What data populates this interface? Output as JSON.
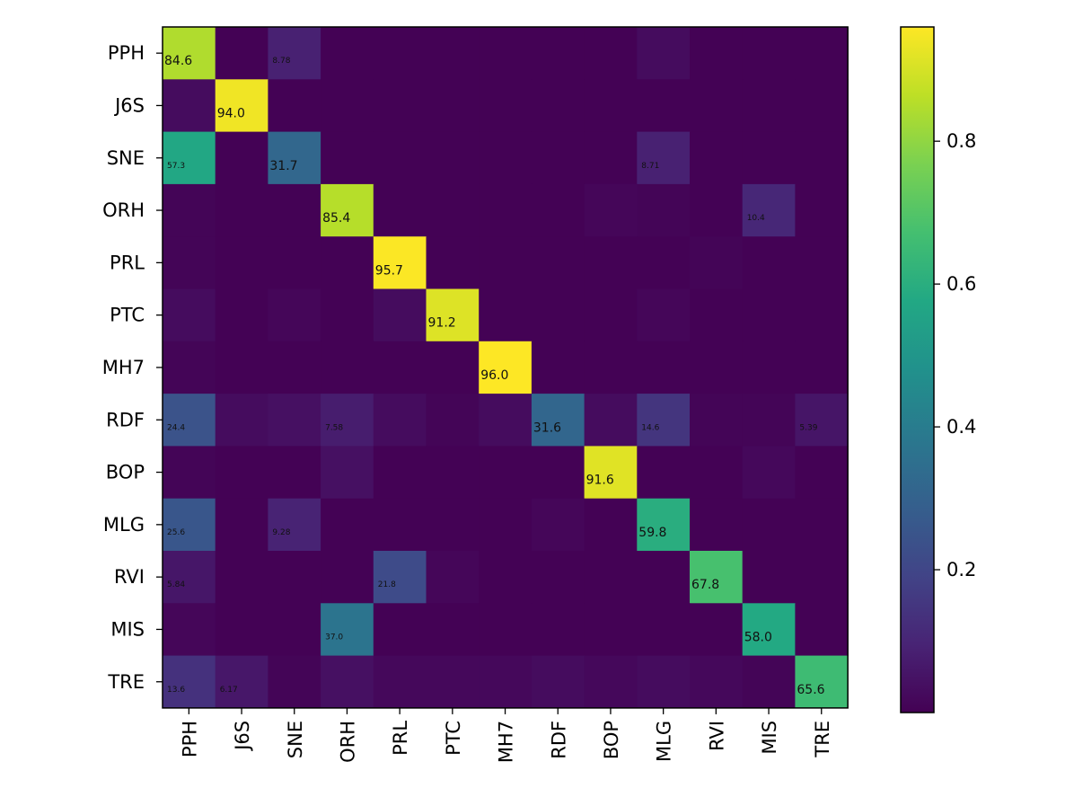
{
  "chart_data": {
    "type": "heatmap",
    "title": "",
    "xlabel": "",
    "ylabel": "",
    "row_labels": [
      "PPH",
      "J6S",
      "SNE",
      "ORH",
      "PRL",
      "PTC",
      "MH7",
      "RDF",
      "BOP",
      "MLG",
      "RVI",
      "MIS",
      "TRE"
    ],
    "col_labels": [
      "PPH",
      "J6S",
      "SNE",
      "ORH",
      "PRL",
      "PTC",
      "MH7",
      "RDF",
      "BOP",
      "MLG",
      "RVI",
      "MIS",
      "TRE"
    ],
    "values": [
      [
        0.846,
        0.002,
        0.0878,
        0.003,
        0.002,
        0.002,
        0.002,
        0.002,
        0.002,
        0.03,
        0.002,
        0.002,
        0.002
      ],
      [
        0.03,
        0.94,
        0.003,
        0.002,
        0.002,
        0.002,
        0.002,
        0.002,
        0.002,
        0.002,
        0.002,
        0.002,
        0.002
      ],
      [
        0.573,
        0.002,
        0.317,
        0.003,
        0.002,
        0.002,
        0.002,
        0.002,
        0.002,
        0.0871,
        0.002,
        0.002,
        0.002
      ],
      [
        0.01,
        0.002,
        0.003,
        0.854,
        0.002,
        0.002,
        0.002,
        0.002,
        0.015,
        0.01,
        0.002,
        0.104,
        0.002
      ],
      [
        0.01,
        0.002,
        0.003,
        0.002,
        0.957,
        0.002,
        0.002,
        0.002,
        0.002,
        0.002,
        0.01,
        0.002,
        0.002
      ],
      [
        0.03,
        0.002,
        0.015,
        0.002,
        0.03,
        0.912,
        0.002,
        0.002,
        0.002,
        0.015,
        0.002,
        0.002,
        0.002
      ],
      [
        0.01,
        0.002,
        0.003,
        0.002,
        0.002,
        0.002,
        0.96,
        0.002,
        0.002,
        0.002,
        0.002,
        0.002,
        0.002
      ],
      [
        0.244,
        0.03,
        0.04,
        0.0758,
        0.03,
        0.01,
        0.03,
        0.316,
        0.03,
        0.146,
        0.01,
        0.01,
        0.0539
      ],
      [
        0.01,
        0.002,
        0.003,
        0.04,
        0.002,
        0.002,
        0.002,
        0.002,
        0.916,
        0.002,
        0.002,
        0.02,
        0.002
      ],
      [
        0.256,
        0.002,
        0.0928,
        0.002,
        0.002,
        0.002,
        0.002,
        0.015,
        0.002,
        0.598,
        0.002,
        0.002,
        0.002
      ],
      [
        0.0584,
        0.002,
        0.003,
        0.002,
        0.218,
        0.015,
        0.002,
        0.002,
        0.002,
        0.002,
        0.678,
        0.002,
        0.002
      ],
      [
        0.015,
        0.002,
        0.003,
        0.37,
        0.002,
        0.002,
        0.002,
        0.002,
        0.002,
        0.002,
        0.002,
        0.58,
        0.002
      ],
      [
        0.136,
        0.0617,
        0.01,
        0.04,
        0.02,
        0.02,
        0.02,
        0.03,
        0.02,
        0.03,
        0.02,
        0.01,
        0.656
      ]
    ],
    "cell_labels": [
      {
        "row": 0,
        "col": 0,
        "text": "84.6"
      },
      {
        "row": 0,
        "col": 2,
        "text": "8.78"
      },
      {
        "row": 1,
        "col": 1,
        "text": "94.0"
      },
      {
        "row": 2,
        "col": 0,
        "text": "57.3"
      },
      {
        "row": 2,
        "col": 2,
        "text": "31.7"
      },
      {
        "row": 2,
        "col": 9,
        "text": "8.71"
      },
      {
        "row": 3,
        "col": 3,
        "text": "85.4"
      },
      {
        "row": 3,
        "col": 11,
        "text": "10.4"
      },
      {
        "row": 4,
        "col": 4,
        "text": "95.7"
      },
      {
        "row": 5,
        "col": 5,
        "text": "91.2"
      },
      {
        "row": 6,
        "col": 6,
        "text": "96.0"
      },
      {
        "row": 7,
        "col": 0,
        "text": "24.4"
      },
      {
        "row": 7,
        "col": 3,
        "text": "7.58"
      },
      {
        "row": 7,
        "col": 7,
        "text": "31.6"
      },
      {
        "row": 7,
        "col": 9,
        "text": "14.6"
      },
      {
        "row": 7,
        "col": 12,
        "text": "5.39"
      },
      {
        "row": 8,
        "col": 8,
        "text": "91.6"
      },
      {
        "row": 9,
        "col": 0,
        "text": "25.6"
      },
      {
        "row": 9,
        "col": 2,
        "text": "9.28"
      },
      {
        "row": 9,
        "col": 9,
        "text": "59.8"
      },
      {
        "row": 10,
        "col": 0,
        "text": "5.84"
      },
      {
        "row": 10,
        "col": 4,
        "text": "21.8"
      },
      {
        "row": 10,
        "col": 10,
        "text": "67.8"
      },
      {
        "row": 11,
        "col": 3,
        "text": "37.0"
      },
      {
        "row": 11,
        "col": 11,
        "text": "58.0"
      },
      {
        "row": 12,
        "col": 0,
        "text": "13.6"
      },
      {
        "row": 12,
        "col": 1,
        "text": "6.17"
      },
      {
        "row": 12,
        "col": 12,
        "text": "65.6"
      }
    ],
    "colormap": "viridis",
    "value_range": [
      0.0,
      0.96
    ],
    "colorbar_ticks": [
      0.2,
      0.4,
      0.6,
      0.8
    ],
    "colorbar_tick_labels": [
      "0.2",
      "0.4",
      "0.6",
      "0.8"
    ],
    "colorbar_position": "right"
  }
}
